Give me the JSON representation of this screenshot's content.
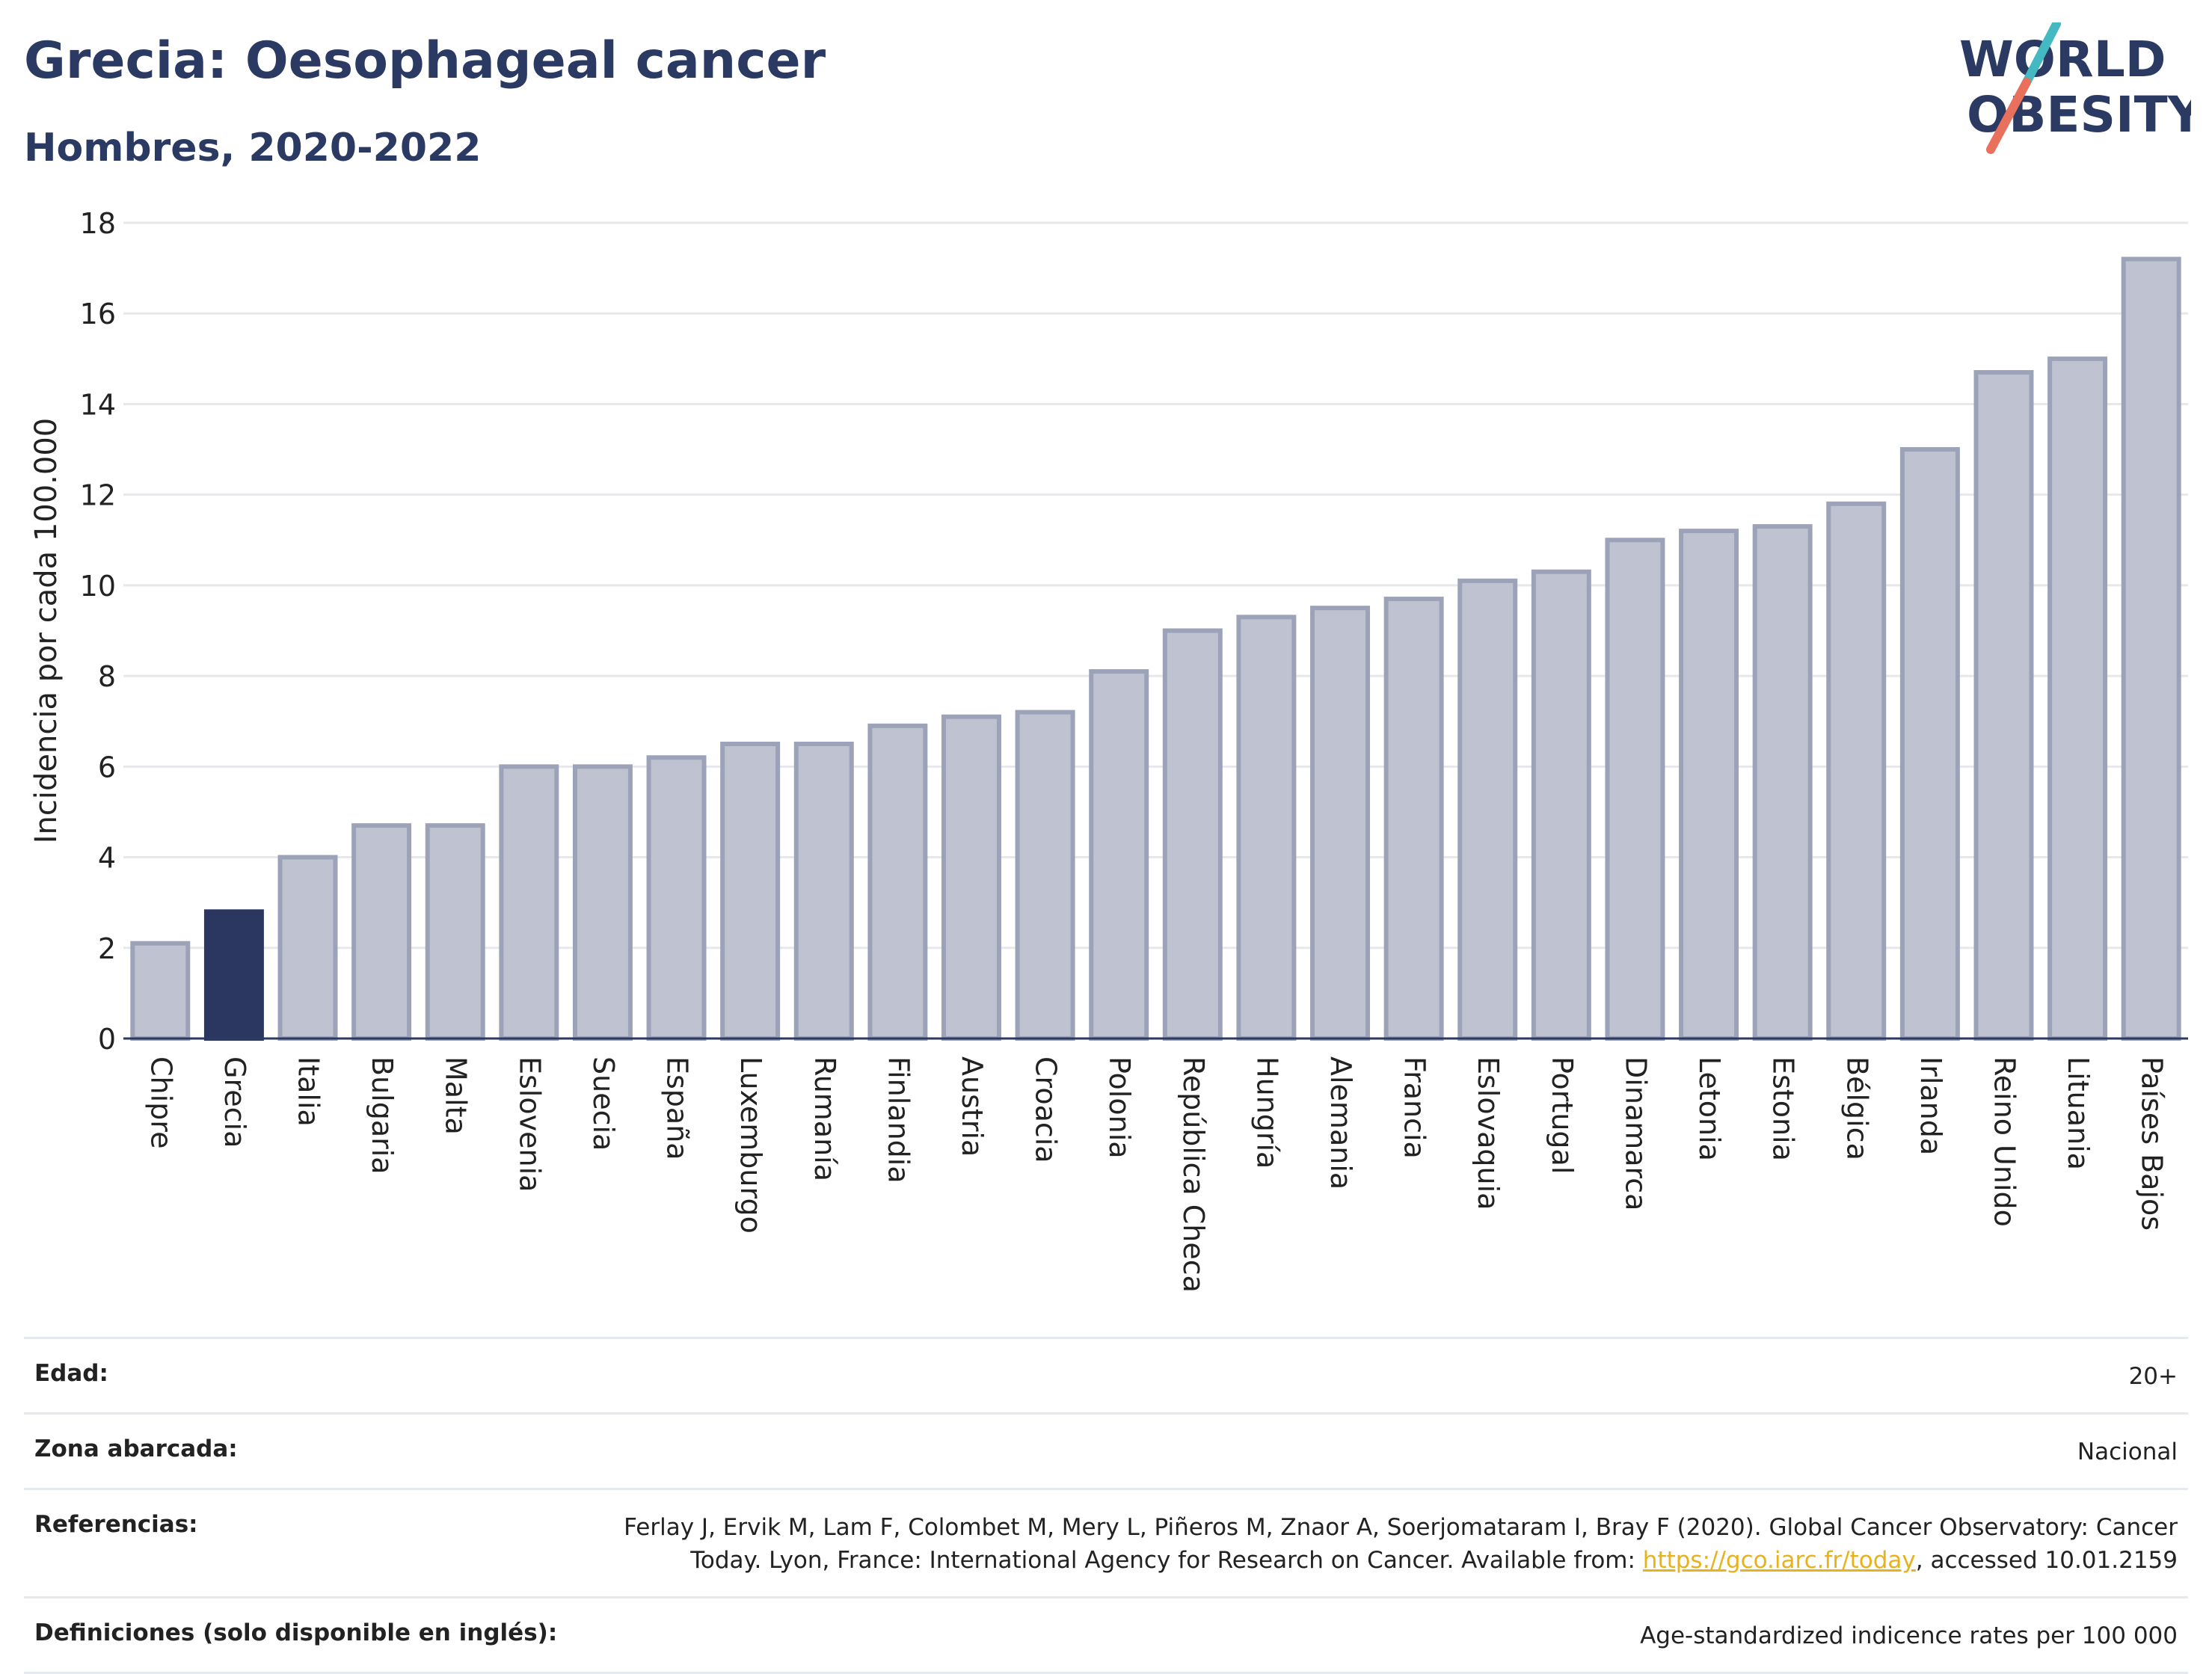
{
  "header": {
    "title": "Grecia: Oesophageal cancer",
    "subtitle": "Hombres, 2020-2022"
  },
  "logo": {
    "line1": "WORLD",
    "line2": "OBESITY",
    "slash_color_top": "#45b9c2",
    "slash_color_bottom": "#e8705c"
  },
  "colors": {
    "bar_default": "#bfc3d1",
    "bar_default_stroke": "#9ca2b8",
    "bar_highlight": "#2b3661",
    "text_dark": "#2b3a63",
    "grid": "#e6e8ec",
    "link": "#e8b21c"
  },
  "chart_data": {
    "type": "bar",
    "ylabel": "Incidencia por cada 100.000",
    "ylim": [
      0,
      18
    ],
    "yticks": [
      0,
      2,
      4,
      6,
      8,
      10,
      12,
      14,
      16,
      18
    ],
    "grid": true,
    "highlight": "Grecia",
    "categories": [
      "Chipre",
      "Grecia",
      "Italia",
      "Bulgaria",
      "Malta",
      "Eslovenia",
      "Suecia",
      "España",
      "Luxemburgo",
      "Rumanía",
      "Finlandia",
      "Austria",
      "Croacia",
      "Polonia",
      "República Checa",
      "Hungría",
      "Alemania",
      "Francia",
      "Eslovaquia",
      "Portugal",
      "Dinamarca",
      "Letonia",
      "Estonia",
      "Bélgica",
      "Irlanda",
      "Reino Unido",
      "Lituania",
      "Países Bajos"
    ],
    "values": [
      2.1,
      2.8,
      4.0,
      4.7,
      4.7,
      6.0,
      6.0,
      6.2,
      6.5,
      6.5,
      6.9,
      7.1,
      7.2,
      8.1,
      9.0,
      9.3,
      9.5,
      9.7,
      10.1,
      10.3,
      11.0,
      11.2,
      11.3,
      11.8,
      13.0,
      14.7,
      15.0,
      17.2
    ]
  },
  "footer": {
    "age_label": "Edad:",
    "age_value": "20+",
    "zone_label": "Zona abarcada:",
    "zone_value": "Nacional",
    "refs_label": "Referencias:",
    "refs_line1": "Ferlay J, Ervik M, Lam F, Colombet M, Mery L, Piñeros M, Znaor A, Soerjomataram I, Bray F (2020). Global Cancer Observatory: Cancer",
    "refs_line2_pre": "Today. Lyon, France: International Agency for Research on Cancer. Available from: ",
    "refs_link": "https://gco.iarc.fr/today",
    "refs_line2_post": ", accessed 10.01.2159",
    "defs_label": "Definiciones (solo disponible en inglés):",
    "defs_value": "Age-standardized indicence rates per 100 000"
  }
}
